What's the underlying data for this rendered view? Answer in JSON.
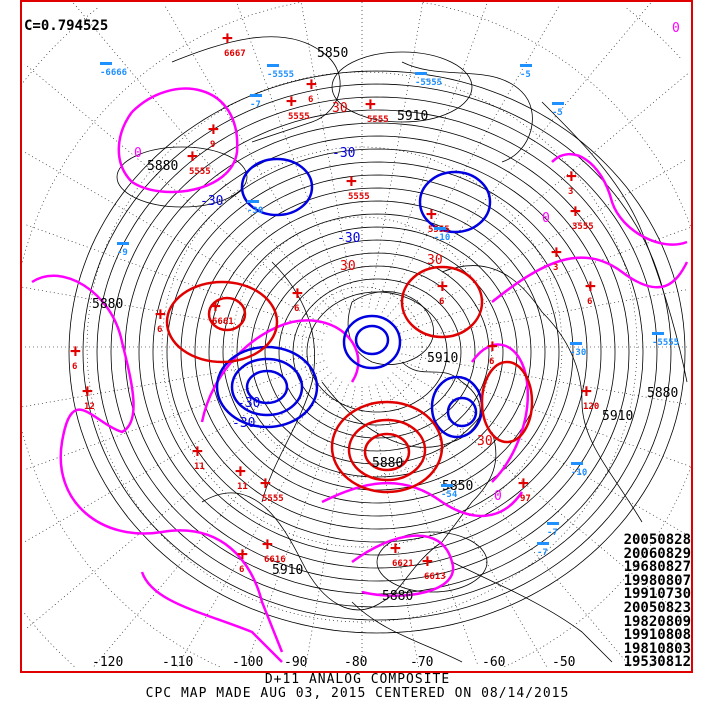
{
  "header": {
    "correlation": "C=0.794525"
  },
  "captions": {
    "title": "D+11 ANALOG COMPOSITE",
    "subtitle": "CPC MAP MADE AUG 03, 2015 CENTERED ON 08/14/2015"
  },
  "analog_dates": [
    "20050828",
    "20060829",
    "19680827",
    "19980807",
    "19910730",
    "20050823",
    "19820809",
    "19910808",
    "19810803",
    "19530812"
  ],
  "longitude_labels": [
    "-120",
    "-110",
    "-100",
    "-90",
    "-80",
    "-70",
    "-60",
    "-50"
  ],
  "height_contour_labels": [
    "5880",
    "5880",
    "5850",
    "5910",
    "5880",
    "5910",
    "5850",
    "5880",
    "5910",
    "5880",
    "5910"
  ],
  "anomaly_contour_labels": [
    "0",
    "0",
    "0",
    "0",
    "-30",
    "30",
    "-30",
    "30",
    "-30",
    "30",
    "-30",
    "30",
    "-30"
  ],
  "positive_centers": [
    "6667",
    "6",
    "5555",
    "5555",
    "9",
    "5555",
    "3",
    "3555",
    "3",
    "6",
    "6",
    "6661",
    "6",
    "12",
    "11",
    "11",
    "5555",
    "5555",
    "6",
    "5555",
    "6",
    "6",
    "6616",
    "6",
    "6621",
    "6613",
    "97",
    "120"
  ],
  "negative_centers": [
    "-6666",
    "-5",
    "-5555",
    "-7",
    "-5555",
    "-5",
    "-9",
    "-30",
    "-10",
    "-10",
    "-54",
    "-7",
    "-7",
    "-30",
    "-5555"
  ],
  "colors": {
    "frame": "#e00000",
    "positive": "#e00000",
    "negative": "#1e90ff",
    "zero": "#ff00ff",
    "neg_contour": "#0000e0",
    "pos_contour": "#e00000",
    "height": "#000000"
  }
}
